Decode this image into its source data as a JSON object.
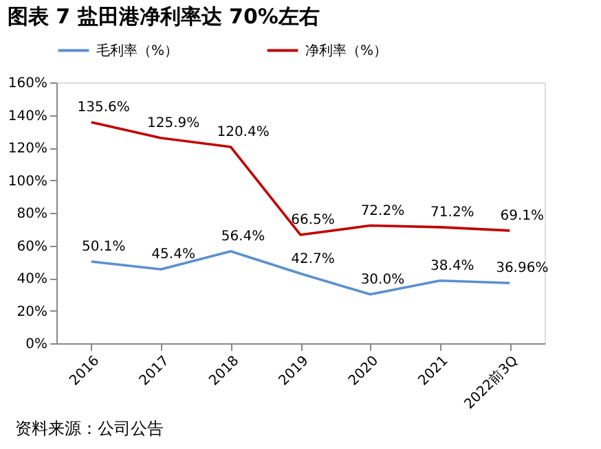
{
  "chart_data": {
    "type": "line",
    "title": "图表 7 盐田港净利率达 70%左右",
    "categories": [
      "2016",
      "2017",
      "2018",
      "2019",
      "2020",
      "2021",
      "2022前3Q"
    ],
    "series": [
      {
        "name": "毛利率（%）",
        "color": "#5b8fd0",
        "values": [
          50.1,
          45.4,
          56.4,
          42.7,
          30.0,
          38.4,
          36.96
        ],
        "value_labels": [
          "50.1%",
          "45.4%",
          "56.4%",
          "42.7%",
          "30.0%",
          "38.4%",
          "36.96%"
        ]
      },
      {
        "name": "净利率（%）",
        "color": "#c00000",
        "values": [
          135.6,
          125.9,
          120.4,
          66.5,
          72.2,
          71.2,
          69.1
        ],
        "value_labels": [
          "135.6%",
          "125.9%",
          "120.4%",
          "66.5%",
          "72.2%",
          "71.2%",
          "69.1%"
        ]
      }
    ],
    "ylim": [
      0,
      160
    ],
    "yticks": [
      {
        "value": 0,
        "label": "0%"
      },
      {
        "value": 20,
        "label": "20%"
      },
      {
        "value": 40,
        "label": "40%"
      },
      {
        "value": 60,
        "label": "60%"
      },
      {
        "value": 80,
        "label": "80%"
      },
      {
        "value": 100,
        "label": "100%"
      },
      {
        "value": 120,
        "label": "120%"
      },
      {
        "value": 140,
        "label": "140%"
      },
      {
        "value": 160,
        "label": "160%"
      }
    ],
    "legend": "top",
    "grid": false,
    "marker": "none",
    "line_style": "solid",
    "annotations": [
      "资料来源：公司公告"
    ]
  }
}
